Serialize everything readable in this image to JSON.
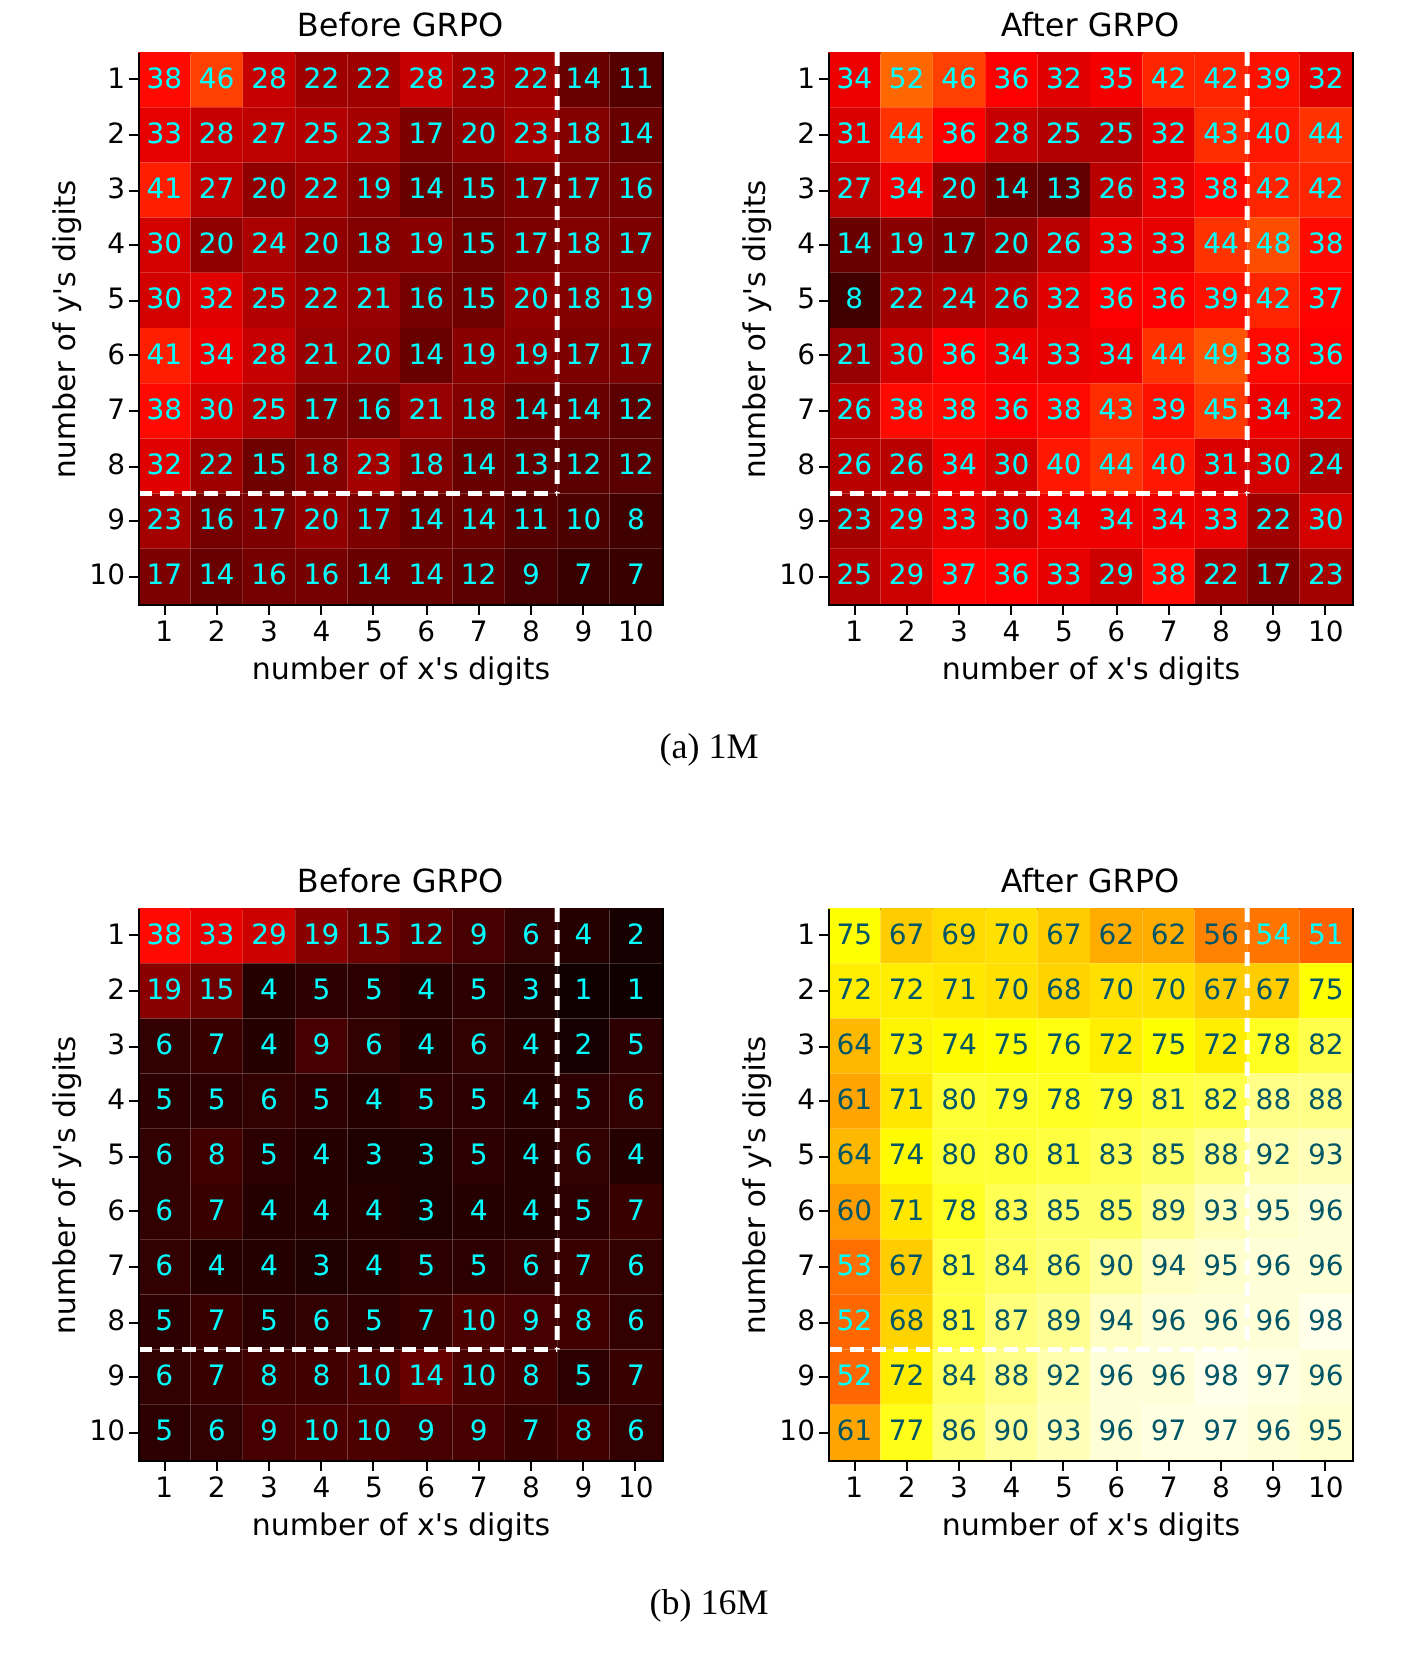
{
  "chart_data": [
    {
      "type": "heatmap",
      "title": "Before GRPO",
      "xlabel": "number of x's digits",
      "ylabel": "number of y's digits",
      "categories": [
        "1",
        "2",
        "3",
        "4",
        "5",
        "6",
        "7",
        "8",
        "9",
        "10"
      ],
      "y_categories": [
        "1",
        "2",
        "3",
        "4",
        "5",
        "6",
        "7",
        "8",
        "9",
        "10"
      ],
      "data_labels": true,
      "cells": [
        [
          38,
          46,
          28,
          22,
          22,
          28,
          23,
          22,
          14,
          11
        ],
        [
          33,
          28,
          27,
          25,
          23,
          17,
          20,
          23,
          18,
          14
        ],
        [
          41,
          27,
          20,
          22,
          19,
          14,
          15,
          17,
          17,
          16
        ],
        [
          30,
          20,
          24,
          20,
          18,
          19,
          15,
          17,
          18,
          17
        ],
        [
          30,
          32,
          25,
          22,
          21,
          16,
          15,
          20,
          18,
          19
        ],
        [
          41,
          34,
          28,
          21,
          20,
          14,
          19,
          19,
          17,
          17
        ],
        [
          38,
          30,
          25,
          17,
          16,
          21,
          18,
          14,
          14,
          12
        ],
        [
          32,
          22,
          15,
          18,
          23,
          18,
          14,
          13,
          12,
          12
        ],
        [
          23,
          16,
          17,
          20,
          17,
          14,
          14,
          11,
          10,
          8
        ],
        [
          17,
          14,
          16,
          16,
          14,
          14,
          12,
          9,
          7,
          7
        ]
      ]
    },
    {
      "type": "heatmap",
      "title": "After GRPO",
      "xlabel": "number of x's digits",
      "ylabel": "number of y's digits",
      "categories": [
        "1",
        "2",
        "3",
        "4",
        "5",
        "6",
        "7",
        "8",
        "9",
        "10"
      ],
      "y_categories": [
        "1",
        "2",
        "3",
        "4",
        "5",
        "6",
        "7",
        "8",
        "9",
        "10"
      ],
      "data_labels": true,
      "cells": [
        [
          34,
          52,
          46,
          36,
          32,
          35,
          42,
          42,
          39,
          32
        ],
        [
          31,
          44,
          36,
          28,
          25,
          25,
          32,
          43,
          40,
          44
        ],
        [
          27,
          34,
          20,
          14,
          13,
          26,
          33,
          38,
          42,
          42
        ],
        [
          14,
          19,
          17,
          20,
          26,
          33,
          33,
          44,
          48,
          38
        ],
        [
          8,
          22,
          24,
          26,
          32,
          36,
          36,
          39,
          42,
          37
        ],
        [
          21,
          30,
          36,
          34,
          33,
          34,
          44,
          49,
          38,
          36
        ],
        [
          26,
          38,
          38,
          36,
          38,
          43,
          39,
          45,
          34,
          32
        ],
        [
          26,
          26,
          34,
          30,
          40,
          44,
          40,
          31,
          30,
          24
        ],
        [
          23,
          29,
          33,
          30,
          34,
          34,
          34,
          33,
          22,
          30
        ],
        [
          25,
          29,
          37,
          36,
          33,
          29,
          38,
          22,
          17,
          23
        ]
      ],
      "annotations": [
        "(a)  1M"
      ]
    },
    {
      "type": "heatmap",
      "title": "Before GRPO",
      "xlabel": "number of x's digits",
      "ylabel": "number of y's digits",
      "categories": [
        "1",
        "2",
        "3",
        "4",
        "5",
        "6",
        "7",
        "8",
        "9",
        "10"
      ],
      "y_categories": [
        "1",
        "2",
        "3",
        "4",
        "5",
        "6",
        "7",
        "8",
        "9",
        "10"
      ],
      "data_labels": true,
      "cells": [
        [
          38,
          33,
          29,
          19,
          15,
          12,
          9,
          6,
          4,
          2
        ],
        [
          19,
          15,
          4,
          5,
          5,
          4,
          5,
          3,
          1,
          1
        ],
        [
          6,
          7,
          4,
          9,
          6,
          4,
          6,
          4,
          2,
          5
        ],
        [
          5,
          5,
          6,
          5,
          4,
          5,
          5,
          4,
          5,
          6
        ],
        [
          6,
          8,
          5,
          4,
          3,
          3,
          5,
          4,
          6,
          4
        ],
        [
          6,
          7,
          4,
          4,
          4,
          3,
          4,
          4,
          5,
          7
        ],
        [
          6,
          4,
          4,
          3,
          4,
          5,
          5,
          6,
          7,
          6
        ],
        [
          5,
          7,
          5,
          6,
          5,
          7,
          10,
          9,
          8,
          6
        ],
        [
          6,
          7,
          8,
          8,
          10,
          14,
          10,
          8,
          5,
          7
        ],
        [
          5,
          6,
          9,
          10,
          10,
          9,
          9,
          7,
          8,
          6
        ]
      ]
    },
    {
      "type": "heatmap",
      "title": "After GRPO",
      "xlabel": "number of x's digits",
      "ylabel": "number of y's digits",
      "categories": [
        "1",
        "2",
        "3",
        "4",
        "5",
        "6",
        "7",
        "8",
        "9",
        "10"
      ],
      "y_categories": [
        "1",
        "2",
        "3",
        "4",
        "5",
        "6",
        "7",
        "8",
        "9",
        "10"
      ],
      "data_labels": true,
      "cells": [
        [
          75,
          67,
          69,
          70,
          67,
          62,
          62,
          56,
          54,
          51
        ],
        [
          72,
          72,
          71,
          70,
          68,
          70,
          70,
          67,
          67,
          75
        ],
        [
          64,
          73,
          74,
          75,
          76,
          72,
          75,
          72,
          78,
          82
        ],
        [
          61,
          71,
          80,
          79,
          78,
          79,
          81,
          82,
          88,
          88
        ],
        [
          64,
          74,
          80,
          80,
          81,
          83,
          85,
          88,
          92,
          93
        ],
        [
          60,
          71,
          78,
          83,
          85,
          85,
          89,
          93,
          95,
          96
        ],
        [
          53,
          67,
          81,
          84,
          86,
          90,
          94,
          95,
          96,
          96
        ],
        [
          52,
          68,
          81,
          87,
          89,
          94,
          96,
          96,
          96,
          98
        ],
        [
          52,
          72,
          84,
          88,
          92,
          96,
          96,
          98,
          97,
          96
        ],
        [
          61,
          77,
          86,
          90,
          93,
          96,
          97,
          97,
          96,
          95
        ]
      ],
      "annotations": [
        "(b)  16M"
      ]
    }
  ]
}
